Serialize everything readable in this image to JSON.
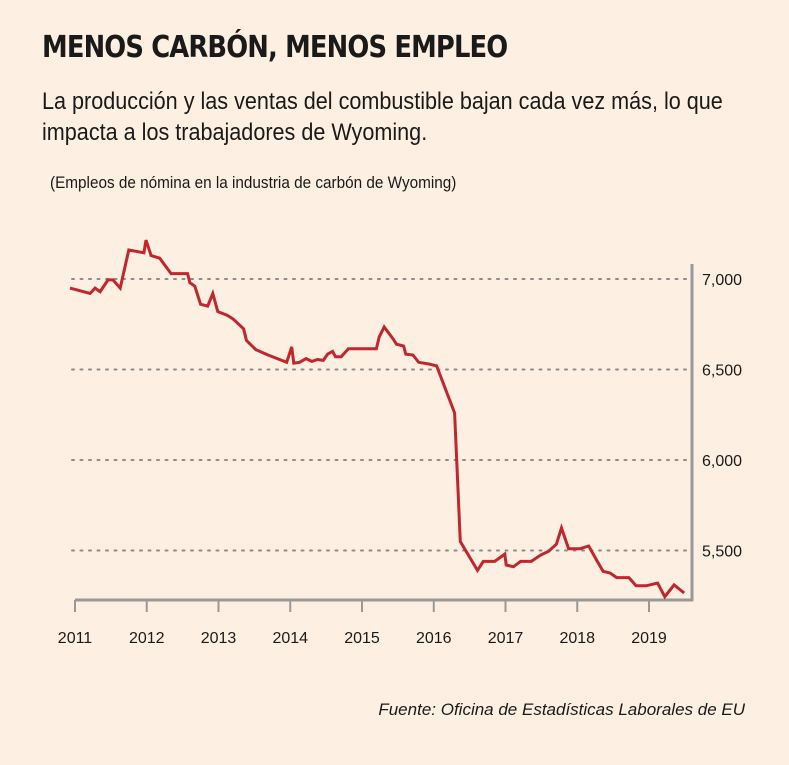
{
  "chart_data": {
    "type": "line",
    "title": "MENOS CARBÓN, MENOS EMPLEO",
    "subtitle": "La producción y las ventas del combustible bajan cada vez más, lo que impacta a los trabajadores de Wyoming.",
    "note": "(Empleos de nómina en la industria de carbón de Wyoming)",
    "source": "Fuente: Oficina de Estadísticas Laborales de EU",
    "xlabel": "",
    "ylabel": "",
    "xlim": [
      2011,
      2019.85
    ],
    "ylim": [
      5230,
      7250
    ],
    "x_ticks": [
      2011,
      2012,
      2013,
      2014,
      2015,
      2016,
      2017,
      2018,
      2019
    ],
    "x_tick_labels": [
      "2011",
      "2012",
      "2013",
      "2014",
      "2015",
      "2016",
      "2017",
      "2018",
      "2019"
    ],
    "y_ticks": [
      5500,
      6000,
      6500,
      7000
    ],
    "y_tick_labels": [
      "5,500",
      "6,000",
      "6,500",
      "7,000"
    ],
    "y_axis_position": "right",
    "grid": "horizontal-dotted",
    "line_color": "#c0272d",
    "series": [
      {
        "name": "Empleos de nómina en la industria de carbón de Wyoming",
        "x": [
          2010.93,
          2011.21,
          2011.28,
          2011.35,
          2011.46,
          2011.53,
          2011.63,
          2011.75,
          2011.96,
          2011.99,
          2012.06,
          2012.18,
          2012.34,
          2012.57,
          2012.6,
          2012.67,
          2012.75,
          2012.85,
          2012.92,
          2012.99,
          2013.12,
          2013.2,
          2013.35,
          2013.39,
          2013.52,
          2013.69,
          2013.95,
          2014.02,
          2014.05,
          2014.13,
          2014.22,
          2014.3,
          2014.38,
          2014.46,
          2014.52,
          2014.59,
          2014.63,
          2014.71,
          2014.81,
          2015.2,
          2015.24,
          2015.31,
          2015.44,
          2015.48,
          2015.58,
          2015.61,
          2015.71,
          2015.79,
          2015.94,
          2016.04,
          2016.29,
          2016.37,
          2016.61,
          2016.69,
          2016.85,
          2016.99,
          2017.01,
          2017.11,
          2017.21,
          2017.36,
          2017.49,
          2017.6,
          2017.71,
          2017.78,
          2017.88,
          2018.04,
          2018.16,
          2018.28,
          2018.36,
          2018.46,
          2018.55,
          2018.72,
          2018.82,
          2018.96,
          2019.12,
          2019.22,
          2019.35,
          2019.49
        ],
        "values": [
          6950,
          6920,
          6950,
          6930,
          6995,
          6995,
          6950,
          7160,
          7145,
          7215,
          7130,
          7115,
          7030,
          7030,
          6980,
          6960,
          6860,
          6850,
          6920,
          6820,
          6800,
          6780,
          6725,
          6660,
          6610,
          6580,
          6540,
          6625,
          6535,
          6540,
          6560,
          6545,
          6555,
          6550,
          6585,
          6600,
          6570,
          6570,
          6615,
          6615,
          6680,
          6735,
          6665,
          6640,
          6630,
          6585,
          6580,
          6540,
          6530,
          6520,
          6260,
          5550,
          5390,
          5440,
          5440,
          5480,
          5420,
          5410,
          5440,
          5440,
          5475,
          5495,
          5535,
          5625,
          5510,
          5510,
          5525,
          5440,
          5385,
          5375,
          5350,
          5350,
          5305,
          5305,
          5320,
          5245,
          5310,
          5265
        ]
      }
    ]
  }
}
